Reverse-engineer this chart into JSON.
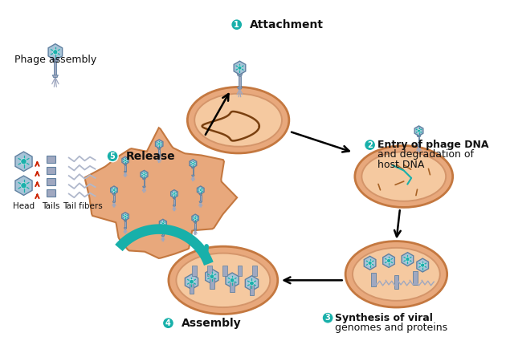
{
  "bg_color": "#ffffff",
  "cell_fill": "#e8a87c",
  "cell_edge": "#c47840",
  "cell_inner_fill": "#f5c9a0",
  "cell_inner_edge": "#d4956a",
  "phage_head_color": "#a8c4d8",
  "phage_head_edge": "#6080a0",
  "phage_body_color": "#9098b8",
  "phage_fiber_color": "#a0a8c0",
  "cyan_color": "#18b0aa",
  "label_color": "#111111",
  "red_arrow_color": "#cc2200",
  "gray_arrow_color": "#888888",
  "labels": {
    "phage_assembly": "Phage assembly",
    "head": "Head",
    "tails": "Tails",
    "tail_fibers": "Tail fibers",
    "step1": "Attachment",
    "step2_l1": "Entry of phage DNA",
    "step2_l2": "and degradation of",
    "step2_l3": "host DNA",
    "step3_l1": "Synthesis of viral",
    "step3_l2": "genomes and proteins",
    "step4": "Assembly",
    "step5": "Release"
  },
  "figsize": [
    6.3,
    4.4
  ],
  "dpi": 100
}
